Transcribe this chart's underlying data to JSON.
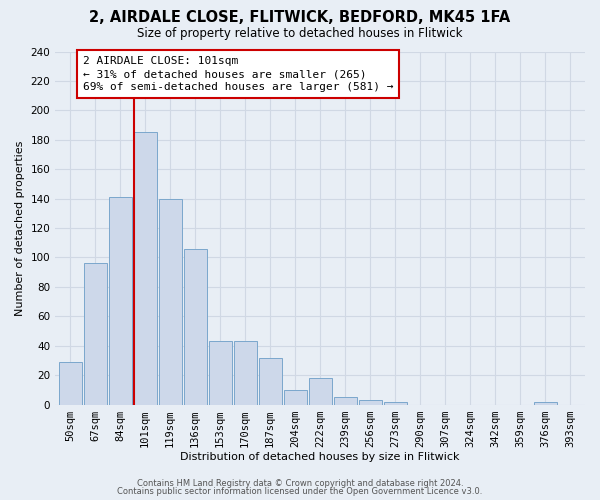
{
  "title": "2, AIRDALE CLOSE, FLITWICK, BEDFORD, MK45 1FA",
  "subtitle": "Size of property relative to detached houses in Flitwick",
  "xlabel": "Distribution of detached houses by size in Flitwick",
  "ylabel": "Number of detached properties",
  "bar_labels": [
    "50sqm",
    "67sqm",
    "84sqm",
    "101sqm",
    "119sqm",
    "136sqm",
    "153sqm",
    "170sqm",
    "187sqm",
    "204sqm",
    "222sqm",
    "239sqm",
    "256sqm",
    "273sqm",
    "290sqm",
    "307sqm",
    "324sqm",
    "342sqm",
    "359sqm",
    "376sqm",
    "393sqm"
  ],
  "bar_values": [
    29,
    96,
    141,
    185,
    140,
    106,
    43,
    43,
    32,
    10,
    18,
    5,
    3,
    2,
    0,
    0,
    0,
    0,
    0,
    2,
    0
  ],
  "bar_color": "#cdd8ea",
  "bar_edge_color": "#7ba7cc",
  "vline_x_index": 3,
  "vline_color": "#cc0000",
  "ylim": [
    0,
    240
  ],
  "yticks": [
    0,
    20,
    40,
    60,
    80,
    100,
    120,
    140,
    160,
    180,
    200,
    220,
    240
  ],
  "annotation_title": "2 AIRDALE CLOSE: 101sqm",
  "annotation_line1": "← 31% of detached houses are smaller (265)",
  "annotation_line2": "69% of semi-detached houses are larger (581) →",
  "annotation_box_color": "#ffffff",
  "annotation_box_edge": "#cc0000",
  "footer1": "Contains HM Land Registry data © Crown copyright and database right 2024.",
  "footer2": "Contains public sector information licensed under the Open Government Licence v3.0.",
  "background_color": "#e8eef5",
  "grid_color": "#d0d8e4",
  "title_fontsize": 10.5,
  "subtitle_fontsize": 8.5,
  "axis_label_fontsize": 8,
  "tick_fontsize": 7.5,
  "annotation_fontsize": 8,
  "footer_fontsize": 6
}
